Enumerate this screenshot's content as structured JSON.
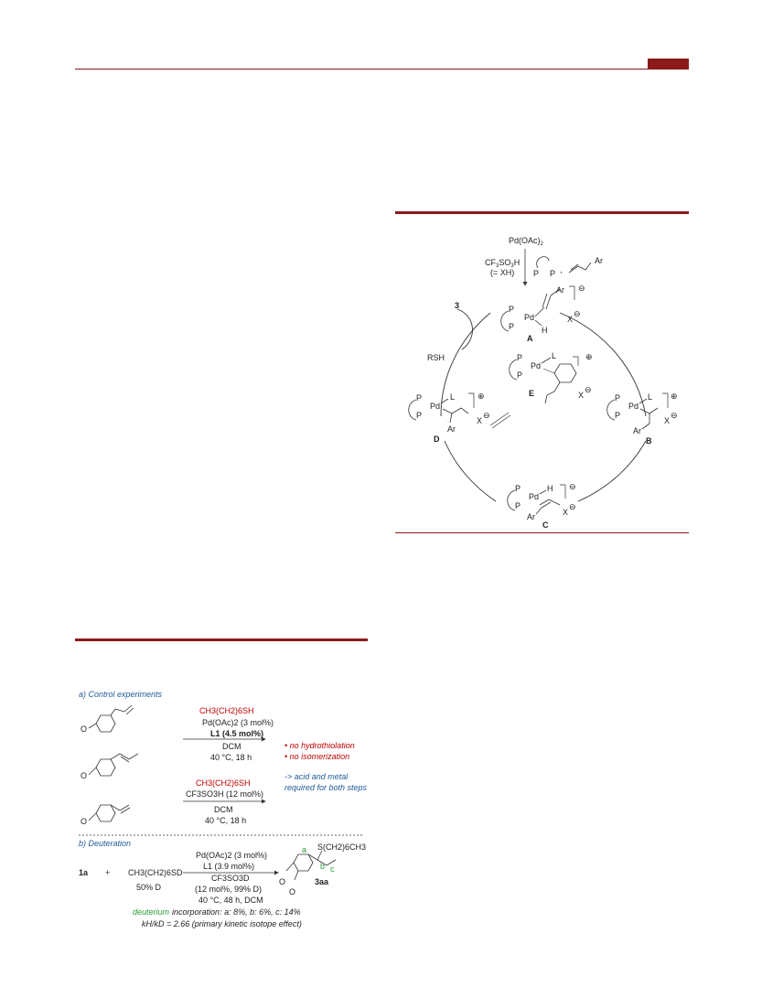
{
  "colors": {
    "accent": "#8b1a1a",
    "red_text": "#c00000",
    "blue_text": "#1f5a96",
    "green_text": "#2a9a3a"
  },
  "scheme_mechanism": {
    "catalyst": "Pd(OAc)",
    "catalyst_sub": "2",
    "acid_line1": "CF",
    "acid_line1_sub": "3",
    "acid_line1_rest": "SO",
    "acid_line1_sub2": "3",
    "acid_line1_end": "H",
    "acid_line2": "(= XH)",
    "ligand_p1": "P",
    "ligand_p2": "P",
    "comma": ",",
    "ar": "Ar",
    "reagent_3": "3",
    "reagent_rsh": "RSH",
    "intermediates": {
      "A": "A",
      "B": "B",
      "C": "C",
      "D": "D",
      "E": "E"
    },
    "pd": "Pd",
    "p": "P",
    "h": "H",
    "l": "L",
    "x": "X",
    "plus": "⊕",
    "minus": "⊖"
  },
  "scheme_experiments": {
    "section_a_title": "a) Control experiments",
    "section_b_title": "b) Deuteration",
    "thiol": "CH",
    "thiol_full": "CH3(CH2)6SH",
    "cond1": [
      "Pd(OAc)2 (3 mol%)",
      "L1 (4.5 mol%)",
      "DCM",
      "40 °C, 18 h"
    ],
    "cond2": [
      "CF3SO3H (12 mol%)",
      "DCM",
      "40 °C, 18 h"
    ],
    "result1": "• no hydrothiolation",
    "result2": "• no isomerization",
    "conclusion1": "-> acid and metal",
    "conclusion2": "required for both steps",
    "ome": "O",
    "d_substrate": "1a",
    "d_plus": "+",
    "d_thiol": "CH3(CH2)6SD",
    "d_thiol_pct": "50% D",
    "d_cond": [
      "Pd(OAc)2 (3 mol%)",
      "L1 (3.9 mol%)",
      "CF3SO3D",
      "(12 mol%, 99% D)",
      "40 °C, 48 h, DCM"
    ],
    "product": "3aa",
    "product_thio": "S(CH2)6CH3",
    "labels": {
      "a": "a",
      "b": "b",
      "c": "c"
    },
    "incorp_lead": "deuterium",
    "incorp_rest": "incorporation: a: 8%, b: 6%, c: 14%",
    "kie": "kH/kD = 2.66 (primary kinetic isotope effect)"
  }
}
